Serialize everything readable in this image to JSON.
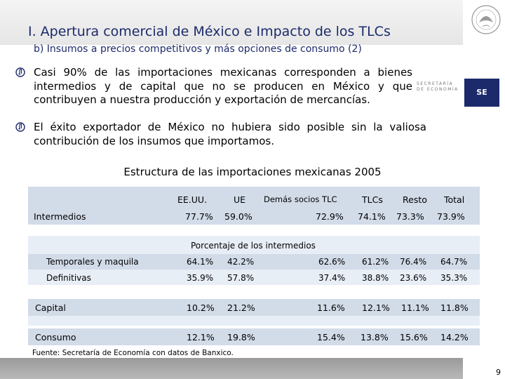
{
  "header": {
    "title": "I. Apertura comercial de México e Impacto de los TLCs",
    "subtitle": "b) Insumos a precios competitivos y más opciones de consumo (2)"
  },
  "logo": {
    "line1": "SECRETARÍA",
    "line2": "DE ECONOMÍA",
    "abbr": "SE"
  },
  "bullets": [
    "Casi 90% de las importaciones mexicanas corresponden a bienes intermedios y de capital que no se producen en México y que contribuyen a nuestra producción y exportación de mercancías.",
    "El éxito exportador de México no hubiera sido posible sin la valiosa contribución de los insumos que importamos."
  ],
  "table": {
    "title": "Estructura de las importaciones mexicanas 2005",
    "columns": [
      "EE.UU.",
      "UE",
      "Demás socios TLC",
      "TLCs",
      "Resto",
      "Total"
    ],
    "subheader": "Porcentaje de los intermedios",
    "rows": [
      {
        "label": "Intermedios",
        "values": [
          "77.7%",
          "59.0%",
          "72.9%",
          "74.1%",
          "73.3%",
          "73.9%"
        ]
      },
      {
        "label": "Temporales y maquila",
        "values": [
          "64.1%",
          "42.2%",
          "62.6%",
          "61.2%",
          "76.4%",
          "64.7%"
        ]
      },
      {
        "label": "Definitivas",
        "values": [
          "35.9%",
          "57.8%",
          "37.4%",
          "38.8%",
          "23.6%",
          "35.3%"
        ]
      },
      {
        "label": "Capital",
        "values": [
          "10.2%",
          "21.2%",
          "11.6%",
          "12.1%",
          "11.1%",
          "11.8%"
        ]
      },
      {
        "label": "Consumo",
        "values": [
          "12.1%",
          "19.8%",
          "15.4%",
          "13.8%",
          "15.6%",
          "14.2%"
        ]
      }
    ],
    "source": "Fuente: Secretaría de Economía con datos de Banxico."
  },
  "footer": {
    "page_number": "9"
  },
  "colors": {
    "title": "#1c2a6b",
    "band_dark": "#d2dbe8",
    "band_light": "#e8eef6",
    "bullet_icon": "#1c2a6b"
  }
}
